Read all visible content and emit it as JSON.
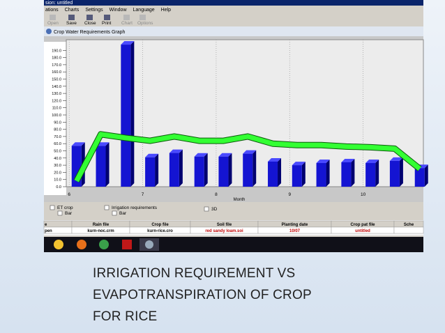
{
  "app": {
    "window_title": "sion: untitled",
    "menu": [
      "ations",
      "Charts",
      "Settings",
      "Window",
      "Language",
      "Help"
    ],
    "toolbar": [
      "Open",
      "Save",
      "Close",
      "Print",
      "Chart",
      "Options"
    ],
    "panel_title": "Crop Water Requirements Graph",
    "options": [
      "Bar",
      "Bar",
      "3D"
    ],
    "table": {
      "headers": [
        "e",
        "Rain file",
        "Crop file",
        "Soil file",
        "Planting date",
        "Crop pat file",
        "Sche"
      ],
      "row": [
        "pen",
        "kurn-noc.crm",
        "kurn-rice.cro",
        "red sandy loam.soi",
        "10/07",
        "untitled",
        ""
      ]
    }
  },
  "chart_data": {
    "type": "bar",
    "x_label": "Month",
    "x": [
      6.1,
      6.43,
      6.77,
      7.1,
      7.43,
      7.77,
      8.1,
      8.43,
      8.77,
      9.1,
      9.43,
      9.77,
      10.1,
      10.43,
      10.77
    ],
    "series": [
      {
        "name": "Irrigation requirements",
        "color": "#1414d2",
        "values": [
          57,
          57,
          198,
          41,
          47,
          42,
          42,
          46,
          35,
          30,
          33,
          34,
          33,
          36,
          26
        ]
      },
      {
        "name": "ET crop",
        "color": "#33ff33",
        "values": [
          8,
          73,
          68,
          64,
          70,
          64,
          64,
          70,
          60,
          58,
          58,
          56,
          55,
          53,
          25
        ]
      }
    ],
    "xlim": [
      5.96,
      10.82
    ],
    "xticks": [
      6,
      7,
      8,
      9,
      10
    ],
    "ylim": [
      0,
      200
    ],
    "yticks": [
      {
        "value": 0,
        "label": "0.0"
      },
      {
        "value": 10,
        "label": "10.0"
      },
      {
        "value": 20,
        "label": "20.0"
      },
      {
        "value": 30,
        "label": "30.0"
      },
      {
        "value": 40,
        "label": "40.0"
      },
      {
        "value": 50,
        "label": "50.0"
      },
      {
        "value": 60,
        "label": "60.0"
      },
      {
        "value": 70,
        "label": "70.0"
      },
      {
        "value": 80,
        "label": "80.0"
      },
      {
        "value": 90,
        "label": "90.0"
      },
      {
        "value": 100,
        "label": "100.0"
      },
      {
        "value": 110,
        "label": "110.0"
      },
      {
        "value": 120,
        "label": "120.0"
      },
      {
        "value": 130,
        "label": "130.0"
      },
      {
        "value": 140,
        "label": "140.0"
      },
      {
        "value": 150,
        "label": "150.0"
      },
      {
        "value": 160,
        "label": "160.0"
      },
      {
        "value": 170,
        "label": "170.0"
      },
      {
        "value": 180,
        "label": "180.0"
      },
      {
        "value": 190,
        "label": "190.0"
      }
    ],
    "grid": true
  },
  "caption": [
    "IRRIGATION REQUIREMENT VS",
    "EVAPOTRANSPIRATION OF CROP",
    "FOR RICE"
  ]
}
